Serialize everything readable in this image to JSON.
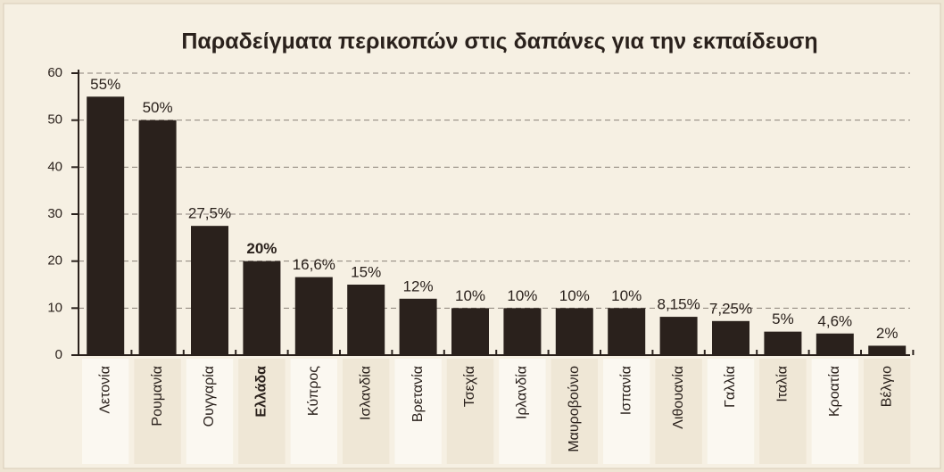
{
  "chart_data": {
    "type": "bar",
    "title": "Παραδείγματα περικοπών στις δαπάνες για την εκπαίδευση",
    "categories": [
      "Λετονία",
      "Ρουμανία",
      "Ουγγαρία",
      "Ελλάδα",
      "Κύπρος",
      "Ισλανδία",
      "Βρετανία",
      "Τσεχία",
      "Ιρλανδία",
      "Μαυροβούνιο",
      "Ισπανία",
      "Λιθουανία",
      "Γαλλία",
      "Ιταλία",
      "Κροατία",
      "Βέλγιο"
    ],
    "values": [
      55,
      50,
      27.5,
      20,
      16.6,
      15,
      12,
      10,
      10,
      10,
      10,
      8.15,
      7.25,
      5,
      4.6,
      2
    ],
    "value_labels": [
      "55%",
      "50%",
      "27,5%",
      "20%",
      "16,6%",
      "15%",
      "12%",
      "10%",
      "10%",
      "10%",
      "10%",
      "8,15%",
      "7,25%",
      "5%",
      "4,6%",
      "2%"
    ],
    "color": "#2a211c",
    "highlight": 3,
    "ylim": [
      0,
      60
    ],
    "yticks": [
      0,
      10,
      20,
      30,
      40,
      50,
      60
    ],
    "grid": true
  }
}
